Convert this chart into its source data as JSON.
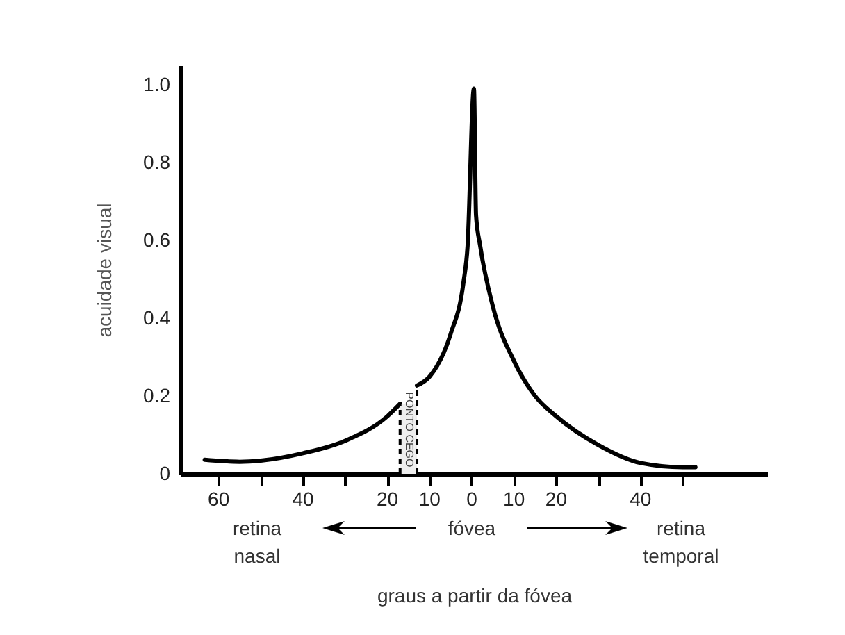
{
  "chart_data": {
    "type": "line",
    "xlabel": "graus a partir da fóvea",
    "ylabel": "acuidade visual",
    "x": [
      -63.3,
      -55,
      -50,
      -40,
      -30,
      -20,
      -17,
      -15,
      -13,
      -10,
      -5,
      -2,
      -1,
      0.5,
      1,
      2,
      5,
      10,
      15,
      20,
      30,
      40,
      50,
      53
    ],
    "series": [
      {
        "color": "#000000",
        "values": [
          0.036,
          0.031,
          0.034,
          0.053,
          0.085,
          0.148,
          0.18,
          null,
          0.227,
          0.25,
          0.36,
          0.49,
          0.585,
          0.99,
          0.665,
          0.585,
          0.43,
          0.29,
          0.2,
          0.148,
          0.074,
          0.028,
          0.017,
          0.017
        ]
      }
    ],
    "xlim": [
      -69,
      70
    ],
    "xticks": [
      {
        "value": -60,
        "label": "60"
      },
      {
        "value": -50,
        "label": null
      },
      {
        "value": -40,
        "label": "40"
      },
      {
        "value": -30,
        "label": null
      },
      {
        "value": -20,
        "label": "20"
      },
      {
        "value": -10,
        "label": "10"
      },
      0,
      10,
      20,
      {
        "value": 30,
        "label": null
      },
      40,
      {
        "value": 50,
        "label": null
      }
    ],
    "ylim": [
      0,
      1.05
    ],
    "yticks": [
      0,
      0.2,
      0.4,
      0.6,
      0.8,
      {
        "value": 1,
        "label": "1.0"
      }
    ],
    "bands": [
      {
        "axis": "x",
        "from": -17,
        "to": -13,
        "label": "PONTO CEGO"
      }
    ],
    "annotations": [
      "retina nasal",
      "fóvea",
      "retina temporal"
    ],
    "grid": false,
    "marker": "none",
    "line_style": "solid"
  }
}
